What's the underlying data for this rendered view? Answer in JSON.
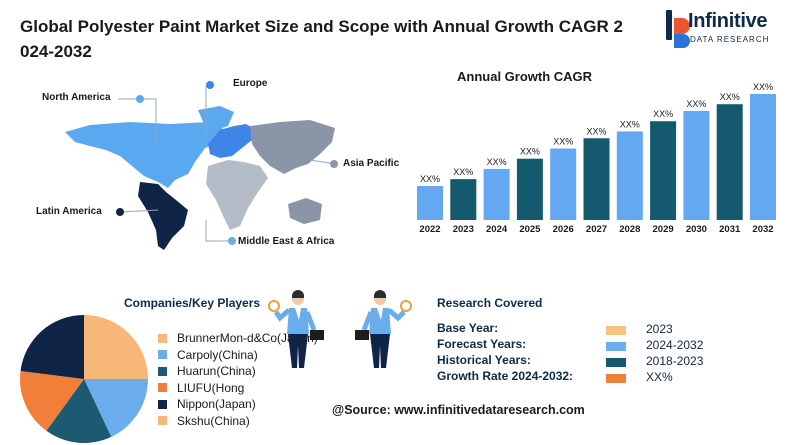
{
  "title": "Global Polyester Paint Market Size and Scope with Annual Growth CAGR 2 024-2032",
  "logo": {
    "name": "Infinitive",
    "tagline": "DATA RESEARCH"
  },
  "map": {
    "regions": [
      {
        "key": "north_america",
        "label": "North America",
        "color": "#5aa9f0"
      },
      {
        "key": "europe",
        "label": "Europe",
        "color": "#3d85e6"
      },
      {
        "key": "asia_pacific",
        "label": "Asia Pacific",
        "color": "#8a96a8"
      },
      {
        "key": "latin_america",
        "label": "Latin America",
        "color": "#0f2447"
      },
      {
        "key": "mea",
        "label": "Middle East & Africa",
        "color": "#b4bcc8"
      }
    ]
  },
  "chart_data": {
    "type": "bar",
    "title": "Annual Growth CAGR",
    "categories": [
      "2022",
      "2023",
      "2024",
      "2025",
      "2026",
      "2027",
      "2028",
      "2029",
      "2030",
      "2031",
      "2032"
    ],
    "values": [
      1,
      1.2,
      1.5,
      1.8,
      2.1,
      2.4,
      2.6,
      2.9,
      3.2,
      3.4,
      3.7
    ],
    "data_labels": [
      "XX%",
      "XX%",
      "XX%",
      "XX%",
      "XX%",
      "XX%",
      "XX%",
      "XX%",
      "XX%",
      "XX%",
      "XX%"
    ],
    "colors": [
      "#63a8f0",
      "#14596e",
      "#63a8f0",
      "#14596e",
      "#63a8f0",
      "#14596e",
      "#63a8f0",
      "#14596e",
      "#63a8f0",
      "#14596e",
      "#63a8f0"
    ],
    "ylim": [
      0,
      3.7
    ],
    "grid": false
  },
  "companies": {
    "heading": "Companies/Key Players",
    "items": [
      {
        "label": "BrunnerMon-d&Co(Japan)",
        "color": "#f7b877",
        "share": 0.25
      },
      {
        "label": "Carpoly(China)",
        "color": "#6aacec",
        "share": 0.18
      },
      {
        "label": "Huarun(China)",
        "color": "#1c5a72",
        "share": 0.17
      },
      {
        "label": "LIUFU(Hong",
        "color": "#f07f3a",
        "share": 0.17
      },
      {
        "label": "Nippon(Japan)",
        "color": "#0f2447",
        "share": 0.23
      },
      {
        "label": "Skshu(China)",
        "color": "#f7b877",
        "share": 0
      }
    ]
  },
  "research": {
    "heading": "Research Covered",
    "rows": [
      {
        "label": "Base Year:",
        "value": "2023",
        "color": "#f7c27e"
      },
      {
        "label": "Forecast Years:",
        "value": "2024-2032",
        "color": "#6aacec"
      },
      {
        "label": "Historical Years:",
        "value": "2018-2023",
        "color": "#14596e"
      },
      {
        "label": "Growth Rate 2024-2032:",
        "value": "XX%",
        "color": "#f07f3a"
      }
    ]
  },
  "source": "@Source: www.infinitivedataresearch.com"
}
